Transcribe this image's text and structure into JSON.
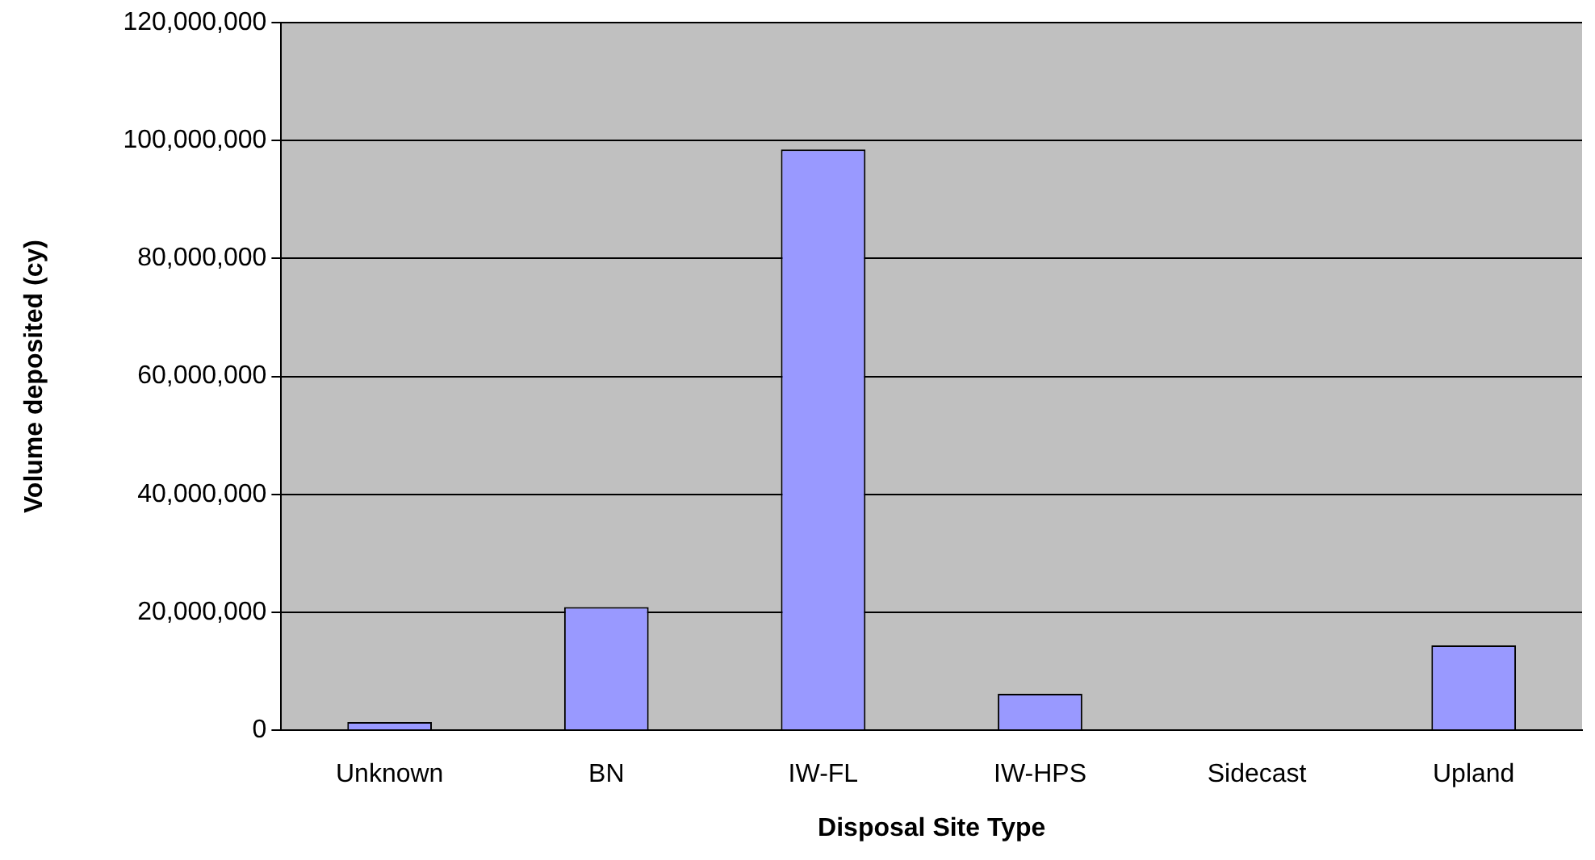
{
  "chart_data": {
    "type": "bar",
    "xlabel": "Disposal Site Type",
    "ylabel": "Volume deposited (cy)",
    "categories": [
      "Unknown",
      "BN",
      "IW-FL",
      "IW-HPS",
      "Sidecast",
      "Upland"
    ],
    "values": [
      1400000,
      20900000,
      98500000,
      6200000,
      0,
      14400000
    ],
    "color": "#9999ff",
    "ylim": [
      0,
      120000000
    ],
    "yticks": [
      0,
      {
        "value": 20000000,
        "label": "20,000,000"
      },
      {
        "value": 40000000,
        "label": "40,000,000"
      },
      {
        "value": 60000000,
        "label": "60,000,000"
      },
      {
        "value": 80000000,
        "label": "80,000,000"
      },
      {
        "value": 100000000,
        "label": "100,000,000"
      },
      {
        "value": 120000000,
        "label": "120,000,000"
      }
    ],
    "grid": "y",
    "legend": false
  }
}
